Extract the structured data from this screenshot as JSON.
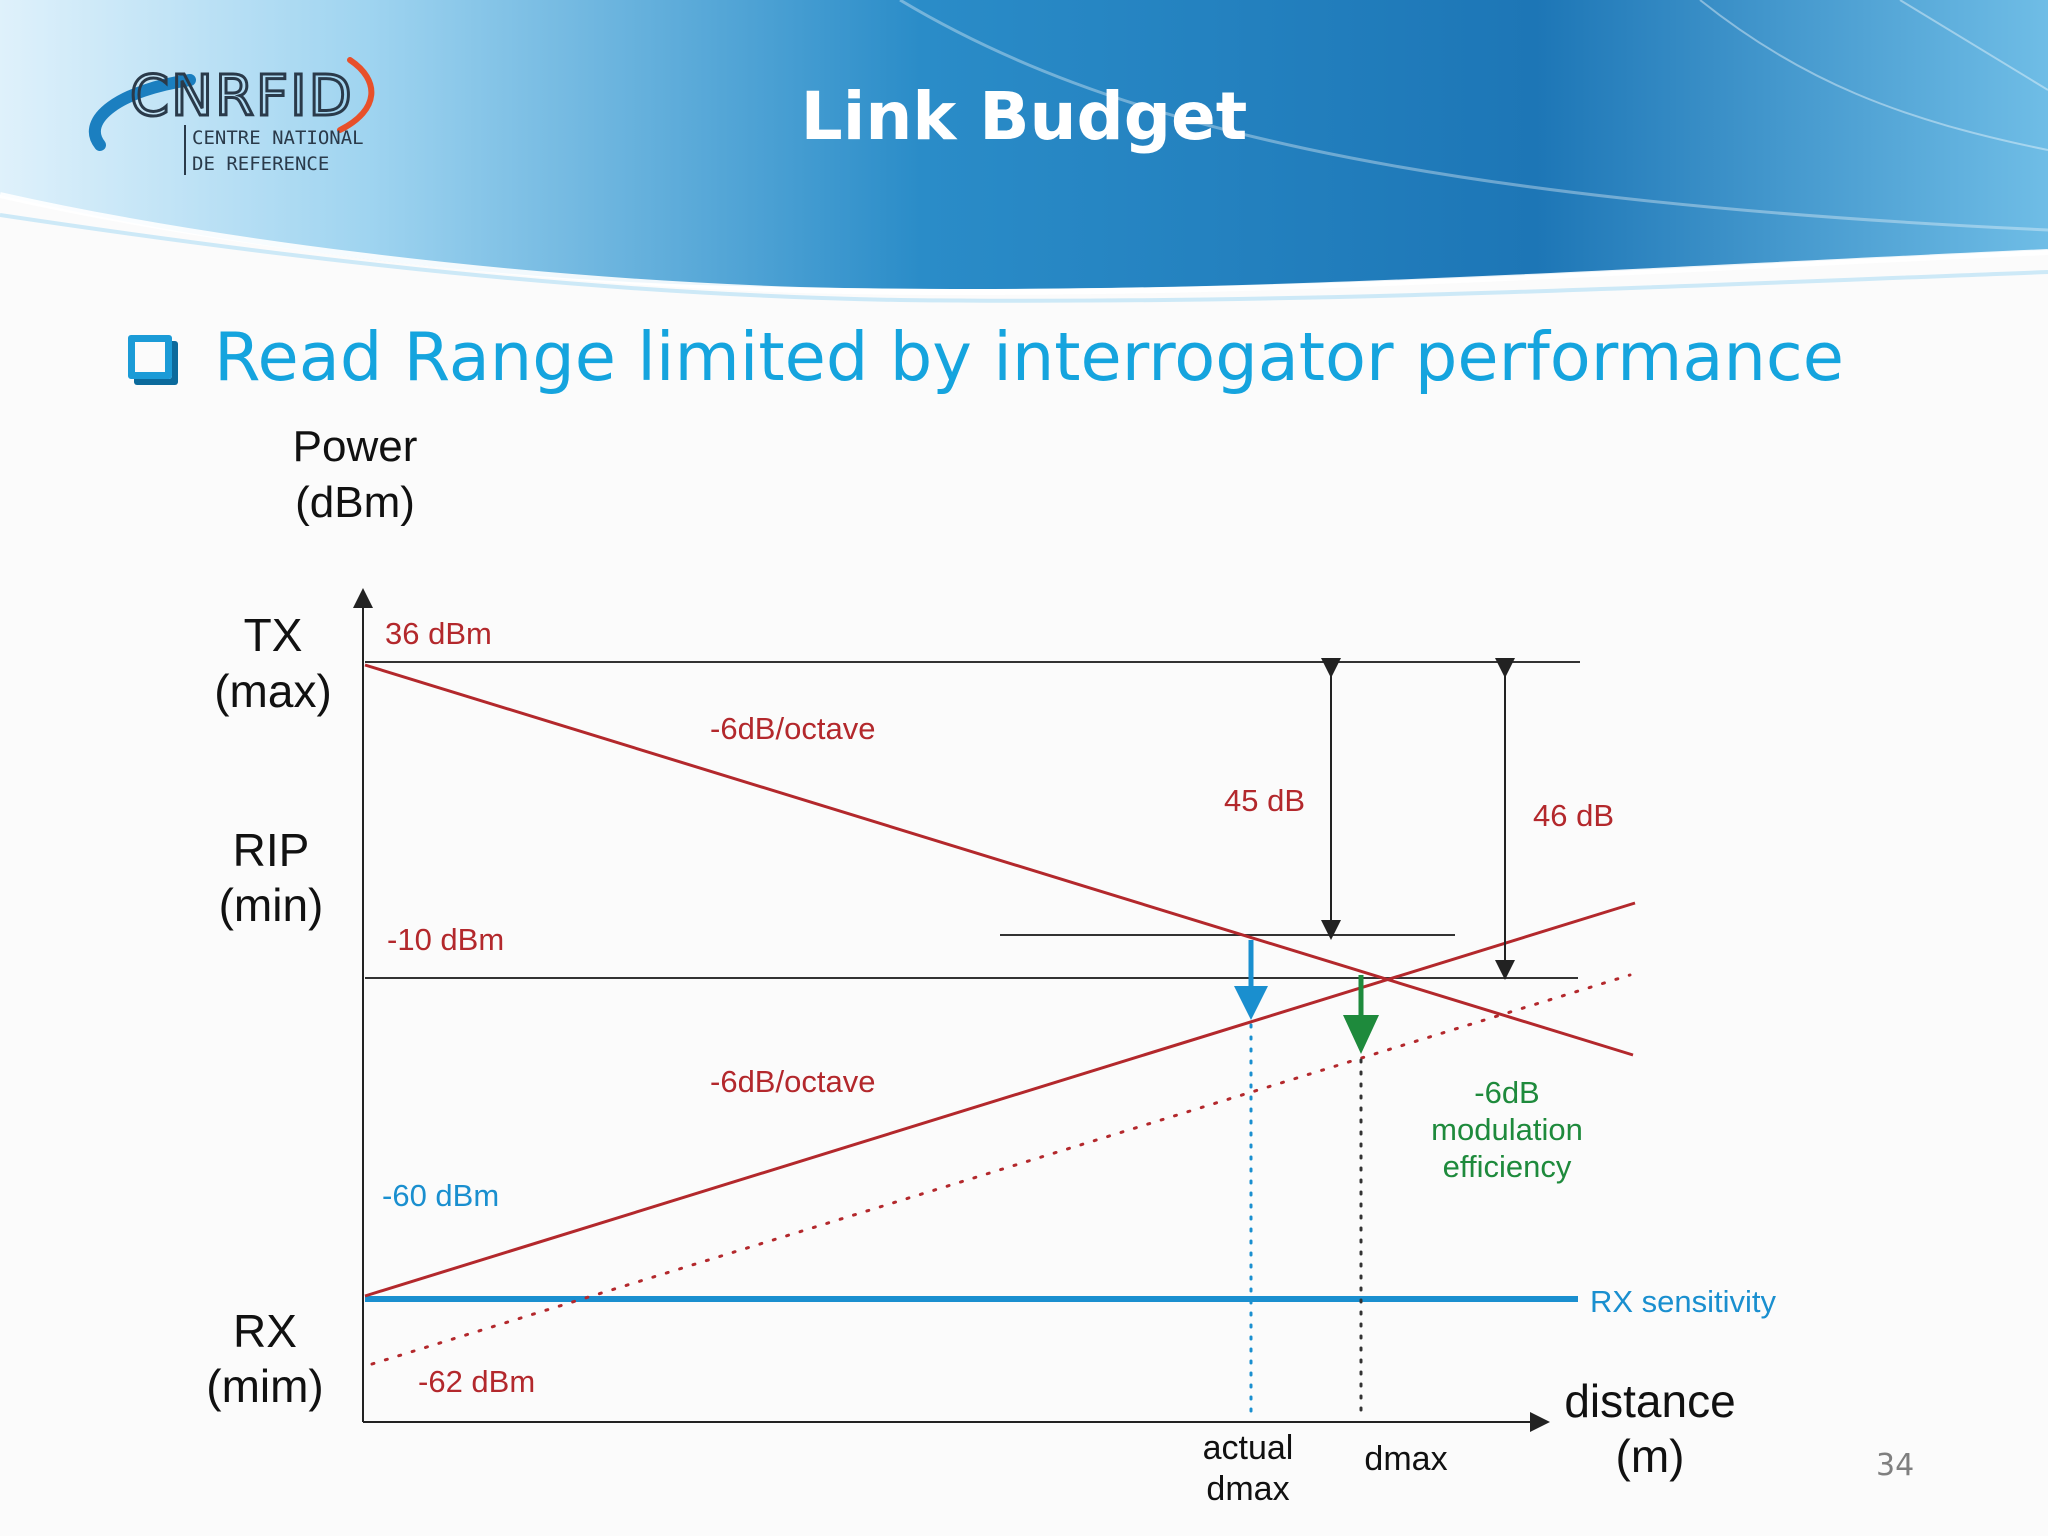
{
  "header": {
    "title": "Link Budget",
    "logo": {
      "name": "CNRFID",
      "line1": "CENTRE NATIONAL",
      "line2": "DE REFERENCE"
    }
  },
  "bullet": {
    "text": "Read Range limited by interrogator performance"
  },
  "diagram": {
    "y_axis_label": {
      "line1": "Power",
      "line2": "(dBm)"
    },
    "x_axis_label": {
      "line1": "distance",
      "line2": "(m)"
    },
    "level_labels": {
      "tx": {
        "line1": "TX",
        "line2": "(max)"
      },
      "rip": {
        "line1": "RIP",
        "line2": "(min)"
      },
      "rx": {
        "line1": "RX",
        "line2": "(mim)"
      }
    },
    "values": {
      "tx": "36 dBm",
      "rip": "-10 dBm",
      "tag_response": "-60 dBm",
      "rx_sensitivity_value": "-62 dBm"
    },
    "slopes": {
      "downlink": "-6dB/octave",
      "uplink": "-6dB/octave"
    },
    "gaps": {
      "actual": "45 dB",
      "max": "46 dB"
    },
    "modulation": {
      "line1": "-6dB",
      "line2": "modulation",
      "line3": "efficiency"
    },
    "rx_sensitivity_label": "RX sensitivity",
    "distance_markers": {
      "actual_line1": "actual",
      "actual_line2": "dmax",
      "dmax": "dmax"
    },
    "colors": {
      "red": "#b3282c",
      "blue": "#1a8fcf",
      "green": "#1e8a3c",
      "black": "#222222"
    }
  },
  "page_number": "34"
}
